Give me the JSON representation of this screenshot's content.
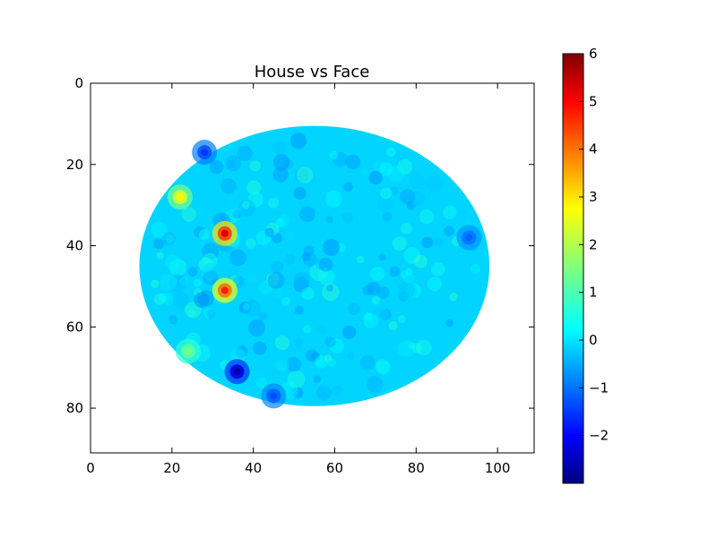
{
  "chart_data": {
    "type": "heatmap",
    "title": "House vs Face",
    "xlabel": "",
    "ylabel": "",
    "x_range": [
      0,
      109
    ],
    "y_range": [
      91,
      0
    ],
    "x_ticks": [
      "0",
      "20",
      "40",
      "60",
      "80",
      "100"
    ],
    "y_ticks": [
      "0",
      "20",
      "40",
      "60",
      "80"
    ],
    "grid": false,
    "colormap": "jet",
    "colorbar": {
      "range": [
        -3,
        6
      ],
      "ticks": [
        "6",
        "5",
        "4",
        "3",
        "2",
        "1",
        "0",
        "−1",
        "−2"
      ],
      "tick_values": [
        6,
        5,
        4,
        3,
        2,
        1,
        0,
        -1,
        -2
      ]
    },
    "background_value": 0,
    "mask_ellipse": {
      "cx_data": 55,
      "cy_data": 45,
      "rx_data": 43,
      "ry_data": 34.5
    },
    "hotspots": [
      {
        "x": 33,
        "y": 37,
        "value": 5.2
      },
      {
        "x": 33,
        "y": 51,
        "value": 4.6
      },
      {
        "x": 22,
        "y": 28,
        "value": 2.7
      },
      {
        "x": 24,
        "y": 66,
        "value": 1.4
      },
      {
        "x": 36,
        "y": 71,
        "value": -2.6
      },
      {
        "x": 28,
        "y": 17,
        "value": -1.4
      },
      {
        "x": 45,
        "y": 77,
        "value": -1.2
      },
      {
        "x": 93,
        "y": 38,
        "value": -1.0
      }
    ]
  }
}
